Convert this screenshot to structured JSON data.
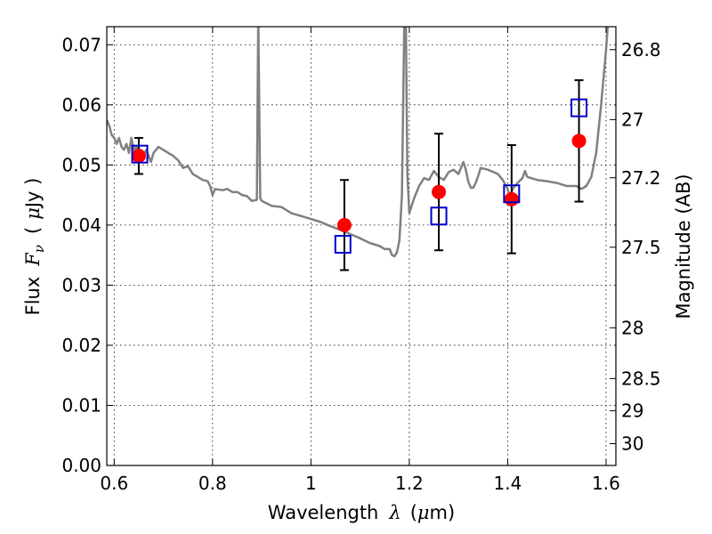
{
  "chart_data": {
    "type": "scatter",
    "xlabel": {
      "prefix": "Wavelength",
      "symbol": "λ",
      "unit_open": "(",
      "unit_mu": "μ",
      "unit_rest": "m)"
    },
    "ylabel": {
      "prefix": "Flux",
      "symbol": "F",
      "subscript": "ν",
      "unit_open": "(",
      "unit_mu": "μ",
      "unit_rest": "Jy )"
    },
    "y2label": "Magnitude (AB)",
    "xlim": [
      0.585,
      1.62
    ],
    "ylim": [
      0.0,
      0.073
    ],
    "x_ticks": [
      0.6,
      0.8,
      1.0,
      1.2,
      1.4,
      1.6
    ],
    "x_tick_labels": [
      "0.6",
      "0.8",
      "1",
      "1.2",
      "1.4",
      "1.6"
    ],
    "y_ticks": [
      0.0,
      0.01,
      0.02,
      0.03,
      0.04,
      0.05,
      0.06,
      0.07
    ],
    "y_tick_labels": [
      "0.00",
      "0.01",
      "0.02",
      "0.03",
      "0.04",
      "0.05",
      "0.06",
      "0.07"
    ],
    "y2_ticks": [
      26.8,
      27.0,
      27.2,
      27.5,
      28.0,
      28.5,
      29.0,
      30.0
    ],
    "y2_tick_labels": [
      "26.8",
      "27",
      "27.2",
      "27.5",
      "28",
      "28.5",
      "29",
      "30"
    ],
    "grid": true,
    "colors": {
      "model": "#808080",
      "observed": "#ff0000",
      "predicted": "#0000cc",
      "errorbar": "#000000"
    },
    "model_spectrum": [
      [
        0.585,
        0.0575
      ],
      [
        0.59,
        0.0565
      ],
      [
        0.595,
        0.055
      ],
      [
        0.6,
        0.0545
      ],
      [
        0.605,
        0.0535
      ],
      [
        0.61,
        0.0545
      ],
      [
        0.615,
        0.053
      ],
      [
        0.62,
        0.0525
      ],
      [
        0.625,
        0.0535
      ],
      [
        0.63,
        0.052
      ],
      [
        0.635,
        0.0545
      ],
      [
        0.64,
        0.0525
      ],
      [
        0.645,
        0.053
      ],
      [
        0.65,
        0.052
      ],
      [
        0.655,
        0.0525
      ],
      [
        0.66,
        0.0515
      ],
      [
        0.665,
        0.0525
      ],
      [
        0.67,
        0.0515
      ],
      [
        0.675,
        0.0505
      ],
      [
        0.68,
        0.052
      ],
      [
        0.69,
        0.053
      ],
      [
        0.7,
        0.0525
      ],
      [
        0.71,
        0.052
      ],
      [
        0.72,
        0.0515
      ],
      [
        0.73,
        0.0508
      ],
      [
        0.74,
        0.0495
      ],
      [
        0.75,
        0.0498
      ],
      [
        0.76,
        0.0485
      ],
      [
        0.77,
        0.048
      ],
      [
        0.78,
        0.0475
      ],
      [
        0.79,
        0.0473
      ],
      [
        0.795,
        0.0465
      ],
      [
        0.8,
        0.045
      ],
      [
        0.805,
        0.046
      ],
      [
        0.82,
        0.0458
      ],
      [
        0.83,
        0.046
      ],
      [
        0.84,
        0.0455
      ],
      [
        0.85,
        0.0455
      ],
      [
        0.86,
        0.045
      ],
      [
        0.87,
        0.0448
      ],
      [
        0.88,
        0.044
      ],
      [
        0.89,
        0.0442
      ],
      [
        0.893,
        0.075
      ],
      [
        0.897,
        0.0445
      ],
      [
        0.9,
        0.044
      ],
      [
        0.92,
        0.0432
      ],
      [
        0.94,
        0.043
      ],
      [
        0.96,
        0.042
      ],
      [
        0.98,
        0.0415
      ],
      [
        1.0,
        0.041
      ],
      [
        1.02,
        0.0405
      ],
      [
        1.04,
        0.0398
      ],
      [
        1.06,
        0.0392
      ],
      [
        1.08,
        0.0385
      ],
      [
        1.1,
        0.0378
      ],
      [
        1.12,
        0.037
      ],
      [
        1.14,
        0.0365
      ],
      [
        1.15,
        0.036
      ],
      [
        1.16,
        0.036
      ],
      [
        1.165,
        0.035
      ],
      [
        1.17,
        0.0348
      ],
      [
        1.175,
        0.0355
      ],
      [
        1.18,
        0.0375
      ],
      [
        1.185,
        0.045
      ],
      [
        1.19,
        0.075
      ],
      [
        1.193,
        0.075
      ],
      [
        1.196,
        0.0485
      ],
      [
        1.2,
        0.042
      ],
      [
        1.21,
        0.0445
      ],
      [
        1.22,
        0.0465
      ],
      [
        1.23,
        0.0478
      ],
      [
        1.24,
        0.0475
      ],
      [
        1.25,
        0.049
      ],
      [
        1.26,
        0.048
      ],
      [
        1.27,
        0.0475
      ],
      [
        1.28,
        0.0488
      ],
      [
        1.29,
        0.0492
      ],
      [
        1.3,
        0.0485
      ],
      [
        1.31,
        0.0505
      ],
      [
        1.315,
        0.0492
      ],
      [
        1.32,
        0.0472
      ],
      [
        1.325,
        0.0462
      ],
      [
        1.33,
        0.0462
      ],
      [
        1.335,
        0.047
      ],
      [
        1.34,
        0.0482
      ],
      [
        1.345,
        0.0495
      ],
      [
        1.36,
        0.0492
      ],
      [
        1.38,
        0.0485
      ],
      [
        1.39,
        0.0475
      ],
      [
        1.4,
        0.046
      ],
      [
        1.405,
        0.0445
      ],
      [
        1.41,
        0.046
      ],
      [
        1.42,
        0.047
      ],
      [
        1.43,
        0.0478
      ],
      [
        1.435,
        0.049
      ],
      [
        1.44,
        0.048
      ],
      [
        1.46,
        0.0475
      ],
      [
        1.48,
        0.0473
      ],
      [
        1.5,
        0.047
      ],
      [
        1.52,
        0.0465
      ],
      [
        1.54,
        0.0465
      ],
      [
        1.55,
        0.046
      ],
      [
        1.56,
        0.0465
      ],
      [
        1.57,
        0.048
      ],
      [
        1.58,
        0.052
      ],
      [
        1.59,
        0.06
      ],
      [
        1.6,
        0.069
      ],
      [
        1.605,
        0.075
      ]
    ],
    "observed": [
      {
        "x": 0.65,
        "y": 0.0515,
        "yerr": 0.003
      },
      {
        "x": 1.068,
        "y": 0.04,
        "yerr": 0.0075
      },
      {
        "x": 1.26,
        "y": 0.0455,
        "yerr": 0.0097
      },
      {
        "x": 1.408,
        "y": 0.0443,
        "yerr": 0.009
      },
      {
        "x": 1.545,
        "y": 0.054,
        "yerr": 0.0101
      }
    ],
    "predicted": [
      {
        "x": 0.652,
        "y": 0.0518
      },
      {
        "x": 1.065,
        "y": 0.0368
      },
      {
        "x": 1.26,
        "y": 0.0415
      },
      {
        "x": 1.408,
        "y": 0.0452
      },
      {
        "x": 1.545,
        "y": 0.0595
      }
    ]
  }
}
